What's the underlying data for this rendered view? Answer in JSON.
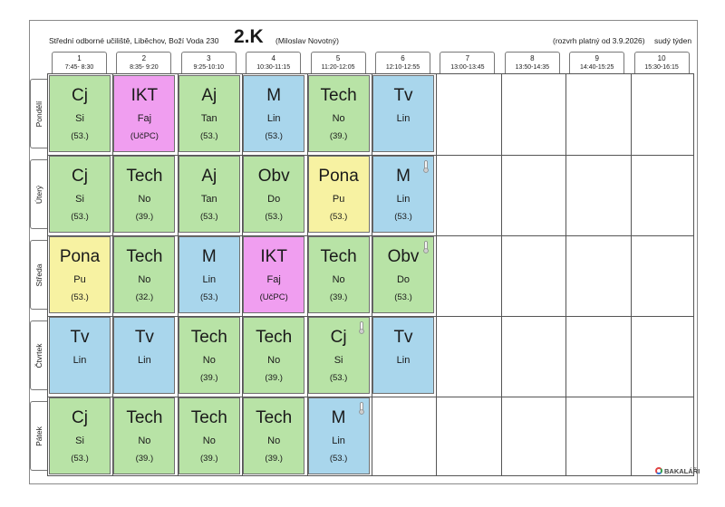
{
  "header": {
    "school": "Střední odborné učiliště, Liběchov, Boží Voda 230",
    "class_name": "2.K",
    "teacher": "(Miloslav Novotný)",
    "valid_from": "(rozvrh platný od 3.9.2026)",
    "week_type": "sudý týden"
  },
  "periods": [
    {
      "num": "1",
      "time": "7:45- 8:30"
    },
    {
      "num": "2",
      "time": "8:35- 9:20"
    },
    {
      "num": "3",
      "time": "9:25-10:10"
    },
    {
      "num": "4",
      "time": "10:30-11:15"
    },
    {
      "num": "5",
      "time": "11:20-12:05"
    },
    {
      "num": "6",
      "time": "12:10-12:55"
    },
    {
      "num": "7",
      "time": "13:00-13:45"
    },
    {
      "num": "8",
      "time": "13:50-14:35"
    },
    {
      "num": "9",
      "time": "14:40-15:25"
    },
    {
      "num": "10",
      "time": "15:30-16:15"
    }
  ],
  "days": [
    {
      "name": "Pondělí",
      "lessons": [
        {
          "subject": "Cj",
          "teacher": "Si",
          "room": "(53.)",
          "color": "#b8e3a6",
          "pin": false
        },
        {
          "subject": "IKT",
          "teacher": "Faj",
          "room": "(UčPC)",
          "color": "#f09ef0",
          "pin": false
        },
        {
          "subject": "Aj",
          "teacher": "Tan",
          "room": "(53.)",
          "color": "#b8e3a6",
          "pin": false
        },
        {
          "subject": "M",
          "teacher": "Lin",
          "room": "(53.)",
          "color": "#a9d6ec",
          "pin": false
        },
        {
          "subject": "Tech",
          "teacher": "No",
          "room": "(39.)",
          "color": "#b8e3a6",
          "pin": false
        },
        {
          "subject": "Tv",
          "teacher": "Lin",
          "room": "",
          "color": "#a9d6ec",
          "pin": false
        }
      ]
    },
    {
      "name": "Úterý",
      "lessons": [
        {
          "subject": "Cj",
          "teacher": "Si",
          "room": "(53.)",
          "color": "#b8e3a6",
          "pin": false
        },
        {
          "subject": "Tech",
          "teacher": "No",
          "room": "(39.)",
          "color": "#b8e3a6",
          "pin": false
        },
        {
          "subject": "Aj",
          "teacher": "Tan",
          "room": "(53.)",
          "color": "#b8e3a6",
          "pin": false
        },
        {
          "subject": "Obv",
          "teacher": "Do",
          "room": "(53.)",
          "color": "#b8e3a6",
          "pin": false
        },
        {
          "subject": "Pona",
          "teacher": "Pu",
          "room": "(53.)",
          "color": "#f7f2a2",
          "pin": false
        },
        {
          "subject": "M",
          "teacher": "Lin",
          "room": "(53.)",
          "color": "#a9d6ec",
          "pin": true
        }
      ]
    },
    {
      "name": "Středa",
      "lessons": [
        {
          "subject": "Pona",
          "teacher": "Pu",
          "room": "(53.)",
          "color": "#f7f2a2",
          "pin": false
        },
        {
          "subject": "Tech",
          "teacher": "No",
          "room": "(32.)",
          "color": "#b8e3a6",
          "pin": false
        },
        {
          "subject": "M",
          "teacher": "Lin",
          "room": "(53.)",
          "color": "#a9d6ec",
          "pin": false
        },
        {
          "subject": "IKT",
          "teacher": "Faj",
          "room": "(UčPC)",
          "color": "#f09ef0",
          "pin": false
        },
        {
          "subject": "Tech",
          "teacher": "No",
          "room": "(39.)",
          "color": "#b8e3a6",
          "pin": false
        },
        {
          "subject": "Obv",
          "teacher": "Do",
          "room": "(53.)",
          "color": "#b8e3a6",
          "pin": true
        }
      ]
    },
    {
      "name": "Čtvrtek",
      "lessons": [
        {
          "subject": "Tv",
          "teacher": "Lin",
          "room": "",
          "color": "#a9d6ec",
          "pin": false
        },
        {
          "subject": "Tv",
          "teacher": "Lin",
          "room": "",
          "color": "#a9d6ec",
          "pin": false
        },
        {
          "subject": "Tech",
          "teacher": "No",
          "room": "(39.)",
          "color": "#b8e3a6",
          "pin": false
        },
        {
          "subject": "Tech",
          "teacher": "No",
          "room": "(39.)",
          "color": "#b8e3a6",
          "pin": false
        },
        {
          "subject": "Cj",
          "teacher": "Si",
          "room": "(53.)",
          "color": "#b8e3a6",
          "pin": true
        },
        {
          "subject": "Tv",
          "teacher": "Lin",
          "room": "",
          "color": "#a9d6ec",
          "pin": false
        }
      ]
    },
    {
      "name": "Pátek",
      "lessons": [
        {
          "subject": "Cj",
          "teacher": "Si",
          "room": "(53.)",
          "color": "#b8e3a6",
          "pin": false
        },
        {
          "subject": "Tech",
          "teacher": "No",
          "room": "(39.)",
          "color": "#b8e3a6",
          "pin": false
        },
        {
          "subject": "Tech",
          "teacher": "No",
          "room": "(39.)",
          "color": "#b8e3a6",
          "pin": false
        },
        {
          "subject": "Tech",
          "teacher": "No",
          "room": "(39.)",
          "color": "#b8e3a6",
          "pin": false
        },
        {
          "subject": "M",
          "teacher": "Lin",
          "room": "(53.)",
          "color": "#a9d6ec",
          "pin": true
        }
      ]
    }
  ],
  "footer": {
    "logo_text": "BAKALÁŘI"
  }
}
